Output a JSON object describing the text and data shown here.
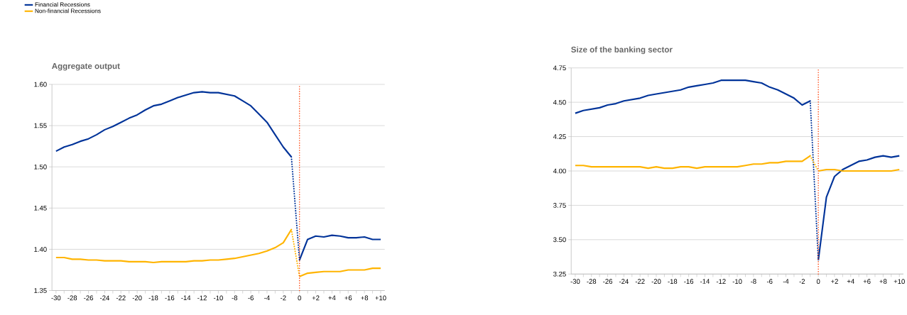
{
  "chart_data": [
    {
      "type": "line",
      "title": "Aggregate output",
      "legend": "top left",
      "grid": "y",
      "line_style": "solid",
      "xlim": [
        -30.5,
        10.5
      ],
      "ylim": [
        1.35,
        1.6
      ],
      "xticks": [
        -30,
        {
          "value": -29,
          "label": null
        },
        -28,
        {
          "value": -27,
          "label": null
        },
        -26,
        {
          "value": -25,
          "label": null
        },
        -24,
        {
          "value": -23,
          "label": null
        },
        -22,
        {
          "value": -21,
          "label": null
        },
        -20,
        {
          "value": -19,
          "label": null
        },
        -18,
        {
          "value": -17,
          "label": null
        },
        -16,
        {
          "value": -15,
          "label": null
        },
        -14,
        {
          "value": -13,
          "label": null
        },
        -12,
        {
          "value": -11,
          "label": null
        },
        -10,
        {
          "value": -9,
          "label": null
        },
        -8,
        {
          "value": -7,
          "label": null
        },
        -6,
        {
          "value": -5,
          "label": null
        },
        -4,
        {
          "value": -3,
          "label": null
        },
        -2,
        {
          "value": -1,
          "label": null
        },
        0,
        {
          "value": 1,
          "label": null
        },
        {
          "value": 2,
          "label": "+2"
        },
        {
          "value": 3,
          "label": null
        },
        {
          "value": 4,
          "label": "+4"
        },
        {
          "value": 5,
          "label": null
        },
        {
          "value": 6,
          "label": "+6"
        },
        {
          "value": 7,
          "label": null
        },
        {
          "value": 8,
          "label": "+8"
        },
        {
          "value": 9,
          "label": null
        },
        {
          "value": 10,
          "label": "+10"
        }
      ],
      "yticks": [
        {
          "value": 1.35,
          "label": "1.35"
        },
        {
          "value": 1.4,
          "label": "1.40"
        },
        {
          "value": 1.45,
          "label": "1.45"
        },
        {
          "value": 1.5,
          "label": "1.50"
        },
        {
          "value": 1.55,
          "label": "1.55"
        },
        {
          "value": 1.6,
          "label": "1.60"
        }
      ],
      "ref_lines": [
        {
          "axis": "x",
          "value": 0,
          "color": "#ff4a14",
          "line_style": "dotted"
        }
      ],
      "series": [
        {
          "name": "Financial Recessions",
          "color": "#003399",
          "x": [
            -30,
            -29,
            -28,
            -27,
            -26,
            -25,
            -24,
            -23,
            -22,
            -21,
            -20,
            -19,
            -18,
            -17,
            -16,
            -15,
            -14,
            -13,
            -12,
            -11,
            -10,
            -9,
            -8,
            -7,
            -6,
            -5,
            -4,
            -3,
            -2,
            -1
          ],
          "values": [
            1.519,
            1.524,
            1.527,
            1.531,
            1.534,
            1.539,
            1.545,
            1.549,
            1.554,
            1.559,
            1.563,
            1.569,
            1.574,
            1.576,
            1.58,
            1.584,
            1.587,
            1.59,
            1.591,
            1.59,
            1.59,
            1.588,
            1.586,
            1.58,
            1.574,
            1.564,
            1.554,
            1.539,
            1.524,
            1.512
          ]
        },
        {
          "name": "Non-financial Recessions",
          "color": "#ffb400",
          "x": [
            -30,
            -29,
            -28,
            -27,
            -26,
            -25,
            -24,
            -23,
            -22,
            -21,
            -20,
            -19,
            -18,
            -17,
            -16,
            -15,
            -14,
            -13,
            -12,
            -11,
            -10,
            -9,
            -8,
            -7,
            -6,
            -5,
            -4,
            -3,
            -2,
            -1
          ],
          "values": [
            1.39,
            1.39,
            1.388,
            1.388,
            1.387,
            1.387,
            1.386,
            1.386,
            1.386,
            1.385,
            1.385,
            1.385,
            1.384,
            1.385,
            1.385,
            1.385,
            1.385,
            1.386,
            1.386,
            1.387,
            1.387,
            1.388,
            1.389,
            1.391,
            1.393,
            1.395,
            1.398,
            1.402,
            1.408,
            1.424
          ]
        },
        {
          "color": "#003399",
          "line_style": "dotted",
          "x": [
            -1,
            0
          ],
          "values": [
            1.512,
            1.387
          ]
        },
        {
          "color": "#ffb400",
          "line_style": "dotted",
          "x": [
            -1,
            0
          ],
          "values": [
            1.424,
            1.367
          ]
        },
        {
          "color": "#003399",
          "x": [
            0,
            1,
            2,
            3,
            4,
            5,
            6,
            7,
            8,
            9,
            10
          ],
          "values": [
            1.387,
            1.412,
            1.416,
            1.415,
            1.417,
            1.416,
            1.414,
            1.414,
            1.415,
            1.412,
            1.412
          ]
        },
        {
          "color": "#ffb400",
          "x": [
            0,
            1,
            2,
            3,
            4,
            5,
            6,
            7,
            8,
            9,
            10
          ],
          "values": [
            1.367,
            1.371,
            1.372,
            1.373,
            1.373,
            1.373,
            1.375,
            1.375,
            1.375,
            1.377,
            1.377
          ]
        }
      ]
    },
    {
      "type": "line",
      "title": "Size of the banking sector",
      "grid": "y",
      "line_style": "solid",
      "xlim": [
        -30.5,
        10.5
      ],
      "ylim": [
        3.25,
        4.75
      ],
      "xticks": [
        -30,
        {
          "value": -29,
          "label": null
        },
        -28,
        {
          "value": -27,
          "label": null
        },
        -26,
        {
          "value": -25,
          "label": null
        },
        -24,
        {
          "value": -23,
          "label": null
        },
        -22,
        {
          "value": -21,
          "label": null
        },
        -20,
        {
          "value": -19,
          "label": null
        },
        -18,
        {
          "value": -17,
          "label": null
        },
        -16,
        {
          "value": -15,
          "label": null
        },
        -14,
        {
          "value": -13,
          "label": null
        },
        -12,
        {
          "value": -11,
          "label": null
        },
        -10,
        {
          "value": -9,
          "label": null
        },
        -8,
        {
          "value": -7,
          "label": null
        },
        -6,
        {
          "value": -5,
          "label": null
        },
        -4,
        {
          "value": -3,
          "label": null
        },
        -2,
        {
          "value": -1,
          "label": null
        },
        0,
        {
          "value": 1,
          "label": null
        },
        {
          "value": 2,
          "label": "+2"
        },
        {
          "value": 3,
          "label": null
        },
        {
          "value": 4,
          "label": "+4"
        },
        {
          "value": 5,
          "label": null
        },
        {
          "value": 6,
          "label": "+6"
        },
        {
          "value": 7,
          "label": null
        },
        {
          "value": 8,
          "label": "+8"
        },
        {
          "value": 9,
          "label": null
        },
        {
          "value": 10,
          "label": "+10"
        }
      ],
      "yticks": [
        {
          "value": 3.25,
          "label": "3.25"
        },
        {
          "value": 3.5,
          "label": "3.50"
        },
        {
          "value": 3.75,
          "label": "3.75"
        },
        {
          "value": 4.0,
          "label": "4.00"
        },
        {
          "value": 4.25,
          "label": "4.25"
        },
        {
          "value": 4.5,
          "label": "4.50"
        },
        {
          "value": 4.75,
          "label": "4.75"
        }
      ],
      "ref_lines": [
        {
          "axis": "x",
          "value": 0,
          "color": "#ff4a14",
          "line_style": "dotted"
        }
      ],
      "series": [
        {
          "color": "#003399",
          "x": [
            -30,
            -29,
            -28,
            -27,
            -26,
            -25,
            -24,
            -23,
            -22,
            -21,
            -20,
            -19,
            -18,
            -17,
            -16,
            -15,
            -14,
            -13,
            -12,
            -11,
            -10,
            -9,
            -8,
            -7,
            -6,
            -5,
            -4,
            -3,
            -2,
            -1
          ],
          "values": [
            4.42,
            4.44,
            4.45,
            4.46,
            4.48,
            4.49,
            4.51,
            4.52,
            4.53,
            4.55,
            4.56,
            4.57,
            4.58,
            4.59,
            4.61,
            4.62,
            4.63,
            4.64,
            4.66,
            4.66,
            4.66,
            4.66,
            4.65,
            4.64,
            4.61,
            4.59,
            4.56,
            4.53,
            4.48,
            4.51
          ]
        },
        {
          "color": "#ffb400",
          "x": [
            -30,
            -29,
            -28,
            -27,
            -26,
            -25,
            -24,
            -23,
            -22,
            -21,
            -20,
            -19,
            -18,
            -17,
            -16,
            -15,
            -14,
            -13,
            -12,
            -11,
            -10,
            -9,
            -8,
            -7,
            -6,
            -5,
            -4,
            -3,
            -2,
            -1
          ],
          "values": [
            4.04,
            4.04,
            4.03,
            4.03,
            4.03,
            4.03,
            4.03,
            4.03,
            4.03,
            4.02,
            4.03,
            4.02,
            4.02,
            4.03,
            4.03,
            4.02,
            4.03,
            4.03,
            4.03,
            4.03,
            4.03,
            4.04,
            4.05,
            4.05,
            4.06,
            4.06,
            4.07,
            4.07,
            4.07,
            4.11
          ]
        },
        {
          "color": "#003399",
          "line_style": "dotted",
          "x": [
            -1,
            0
          ],
          "values": [
            4.51,
            3.35
          ]
        },
        {
          "color": "#ffb400",
          "line_style": "dotted",
          "x": [
            -1,
            0
          ],
          "values": [
            4.11,
            4.0
          ]
        },
        {
          "color": "#003399",
          "x": [
            0,
            1,
            2,
            3,
            4,
            5,
            6,
            7,
            8,
            9,
            10
          ],
          "values": [
            3.35,
            3.81,
            3.96,
            4.01,
            4.04,
            4.07,
            4.08,
            4.1,
            4.11,
            4.1,
            4.11
          ]
        },
        {
          "color": "#ffb400",
          "x": [
            0,
            1,
            2,
            3,
            4,
            5,
            6,
            7,
            8,
            9,
            10
          ],
          "values": [
            4.0,
            4.01,
            4.01,
            4.0,
            4.0,
            4.0,
            4.0,
            4.0,
            4.0,
            4.0,
            4.01
          ]
        }
      ]
    }
  ]
}
